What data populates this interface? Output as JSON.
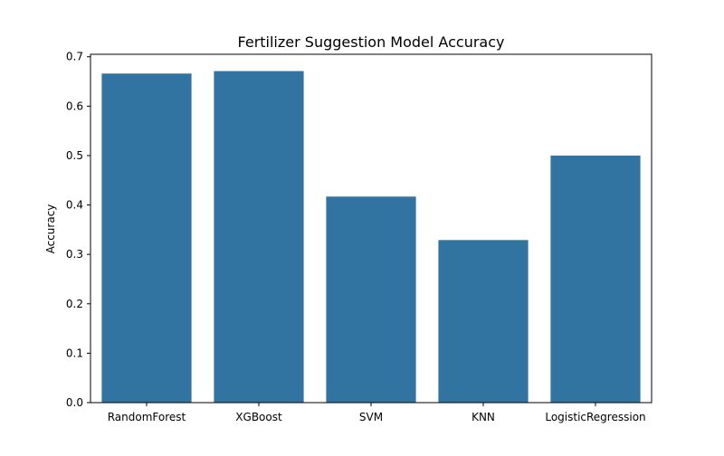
{
  "chart_data": {
    "type": "bar",
    "title": "Fertilizer Suggestion Model Accuracy",
    "xlabel": "",
    "ylabel": "Accuracy",
    "categories": [
      "RandomForest",
      "XGBoost",
      "SVM",
      "KNN",
      "LogisticRegression"
    ],
    "values": [
      0.666,
      0.671,
      0.417,
      0.329,
      0.5
    ],
    "ylim": [
      0,
      0.705
    ],
    "yticks": [
      0.0,
      0.1,
      0.2,
      0.3,
      0.4,
      0.5,
      0.6,
      0.7
    ],
    "ytick_labels": [
      "0.0",
      "0.1",
      "0.2",
      "0.3",
      "0.4",
      "0.5",
      "0.6",
      "0.7"
    ],
    "grid": false,
    "bar_color": "#3274a1"
  }
}
